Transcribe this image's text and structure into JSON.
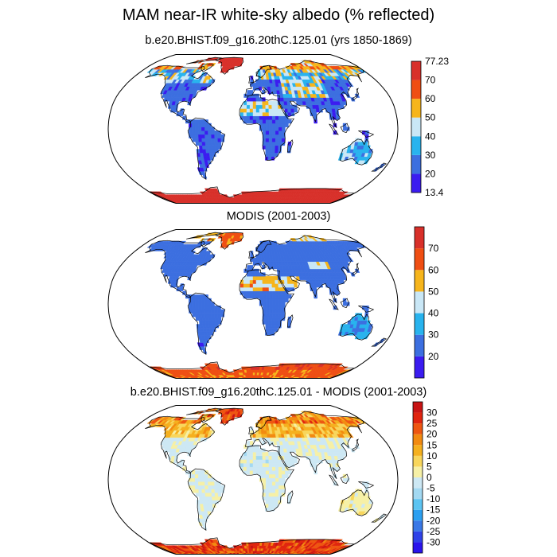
{
  "page": {
    "title": "MAM near-IR white-sky albedo (% reflected)"
  },
  "chart_data": [
    {
      "type": "heatmap",
      "title": "b.e20.BHIST.f09_g16.20thC.125.01 (yrs 1850-1869)",
      "projection": "robinson",
      "colorbar": {
        "labels": [
          "77.23",
          "70",
          "60",
          "50",
          "40",
          "30",
          "20",
          "13.4"
        ],
        "levels": [
          20,
          30,
          40,
          50,
          60,
          70
        ],
        "min": 13.4,
        "max": 77.23,
        "colors": [
          "#3b1cf0",
          "#3c6fe0",
          "#28b3ee",
          "#c9e7f6",
          "#f6b51c",
          "#ef4e13",
          "#d8302a"
        ]
      }
    },
    {
      "type": "heatmap",
      "title": "MODIS (2001-2003)",
      "projection": "robinson",
      "colorbar": {
        "labels": [
          "70",
          "60",
          "50",
          "40",
          "30",
          "20"
        ],
        "levels": [
          20,
          30,
          40,
          50,
          60,
          70
        ],
        "colors": [
          "#3b1cf0",
          "#3c6fe0",
          "#28b3ee",
          "#c9e7f6",
          "#f6b51c",
          "#ef4e13",
          "#d8302a"
        ]
      }
    },
    {
      "type": "heatmap",
      "title": "b.e20.BHIST.f09_g16.20thC.125.01 - MODIS (2001-2003)",
      "projection": "robinson",
      "colorbar": {
        "labels": [
          "30",
          "25",
          "20",
          "15",
          "10",
          "5",
          "0",
          "-5",
          "-10",
          "-15",
          "-20",
          "-25",
          "-30"
        ],
        "levels": [
          -30,
          -25,
          -20,
          -15,
          -10,
          -5,
          0,
          5,
          10,
          15,
          20,
          25,
          30
        ],
        "colors": [
          "#2a14ec",
          "#2f42e8",
          "#3a78e6",
          "#2b9ff0",
          "#5cc4f2",
          "#a3d9f2",
          "#cde8f4",
          "#f6f0a6",
          "#f8d65c",
          "#f5b01e",
          "#f28a10",
          "#ee5610",
          "#e0240e",
          "#c81414"
        ]
      }
    }
  ]
}
